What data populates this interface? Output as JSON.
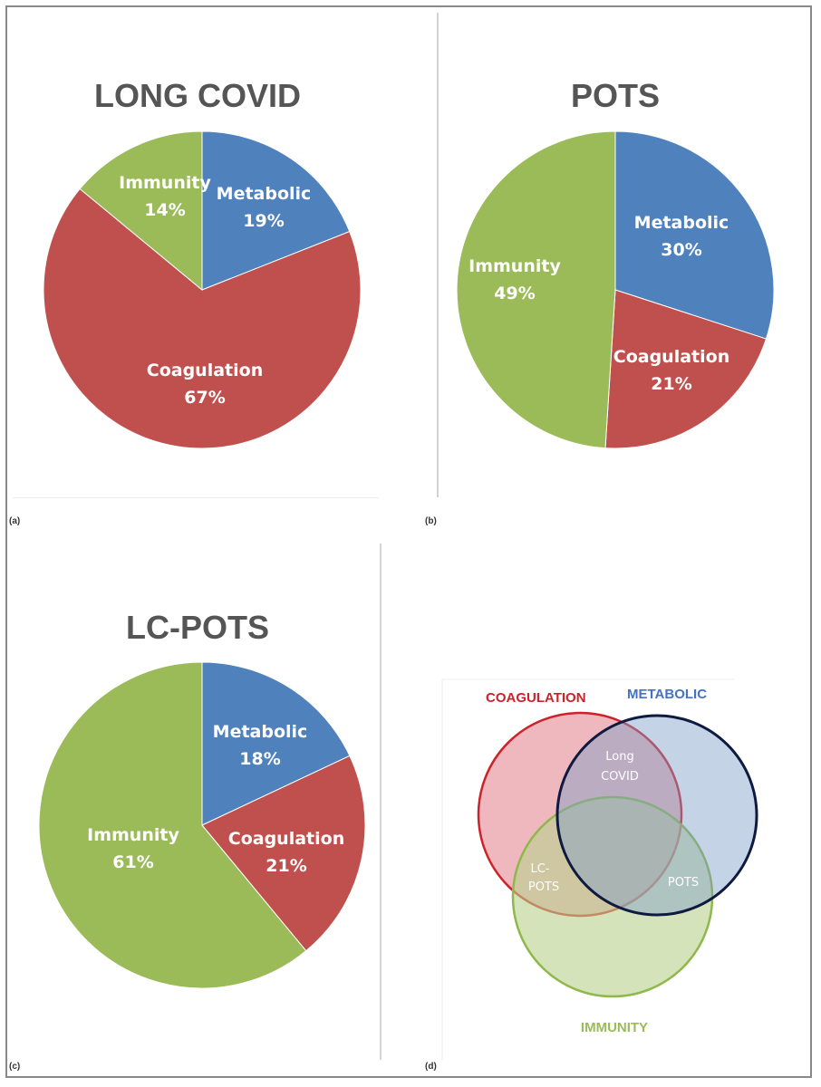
{
  "colors": {
    "metabolic": "#4f81bd",
    "coagulation": "#c0504d",
    "immunity": "#9bbb59"
  },
  "chart_data": [
    {
      "type": "pie",
      "panel": "(a)",
      "title": "LONG COVID",
      "slices": [
        {
          "label": "Metabolic",
          "value": 19,
          "value_label": "19%",
          "color": "#4f81bd"
        },
        {
          "label": "Coagulation",
          "value": 67,
          "value_label": "67%",
          "color": "#c0504d"
        },
        {
          "label": "Immunity",
          "value": 14,
          "value_label": "14%",
          "color": "#9bbb59"
        }
      ]
    },
    {
      "type": "pie",
      "panel": "(b)",
      "title": "POTS",
      "slices": [
        {
          "label": "Metabolic",
          "value": 30,
          "value_label": "30%",
          "color": "#4f81bd"
        },
        {
          "label": "Coagulation",
          "value": 21,
          "value_label": "21%",
          "color": "#c0504d"
        },
        {
          "label": "Immunity",
          "value": 49,
          "value_label": "49%",
          "color": "#9bbb59"
        }
      ]
    },
    {
      "type": "pie",
      "panel": "(c)",
      "title": "LC-POTS",
      "slices": [
        {
          "label": "Metabolic",
          "value": 18,
          "value_label": "18%",
          "color": "#4f81bd"
        },
        {
          "label": "Coagulation",
          "value": 21,
          "value_label": "21%",
          "color": "#c0504d"
        },
        {
          "label": "Immunity",
          "value": 61,
          "value_label": "61%",
          "color": "#9bbb59"
        }
      ]
    }
  ],
  "venn": {
    "panel": "(d)",
    "sets": [
      {
        "name": "COAGULATION",
        "color": "#cc2229"
      },
      {
        "name": "METABOLIC",
        "color": "#4472c4"
      },
      {
        "name": "IMMUNITY",
        "color": "#9bbb59"
      }
    ],
    "regions": [
      {
        "lines": [
          "Long",
          "COVID"
        ]
      },
      {
        "lines": [
          "LC-",
          "POTS"
        ]
      },
      {
        "lines": [
          "POTS"
        ]
      }
    ]
  }
}
